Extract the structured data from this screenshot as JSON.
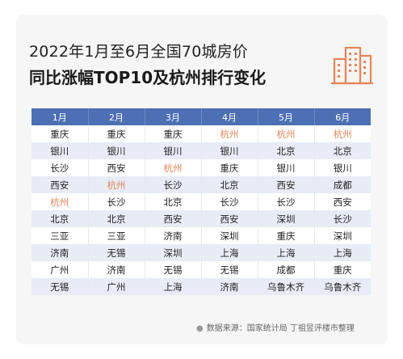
{
  "title_line1": "2022年1月至6月全国70城房价",
  "title_line2": "同比涨幅TOP10及杭州排行变化",
  "logo_icon": "buildings-icon",
  "highlight_city": "杭州",
  "highlight_color": "#e4865a",
  "header_color": "#4d6fb3",
  "table": {
    "headers": [
      "1月",
      "2月",
      "3月",
      "4月",
      "5月",
      "6月"
    ],
    "rows": [
      [
        "重庆",
        "重庆",
        "重庆",
        "杭州",
        "杭州",
        "杭州"
      ],
      [
        "银川",
        "银川",
        "银川",
        "银川",
        "北京",
        "北京"
      ],
      [
        "长沙",
        "西安",
        "杭州",
        "重庆",
        "银川",
        "银川"
      ],
      [
        "西安",
        "杭州",
        "长沙",
        "北京",
        "西安",
        "成都"
      ],
      [
        "杭州",
        "长沙",
        "北京",
        "长沙",
        "长沙",
        "西安"
      ],
      [
        "北京",
        "北京",
        "西安",
        "西安",
        "深圳",
        "长沙"
      ],
      [
        "三亚",
        "三亚",
        "济南",
        "深圳",
        "重庆",
        "深圳"
      ],
      [
        "济南",
        "无锡",
        "深圳",
        "上海",
        "上海",
        "上海"
      ],
      [
        "广州",
        "济南",
        "无锡",
        "无锡",
        "成都",
        "重庆"
      ],
      [
        "无锡",
        "广州",
        "上海",
        "济南",
        "乌鲁木齐",
        "乌鲁木齐"
      ]
    ]
  },
  "source": "数据来源：国家统计局 丁祖昱评楼市整理"
}
